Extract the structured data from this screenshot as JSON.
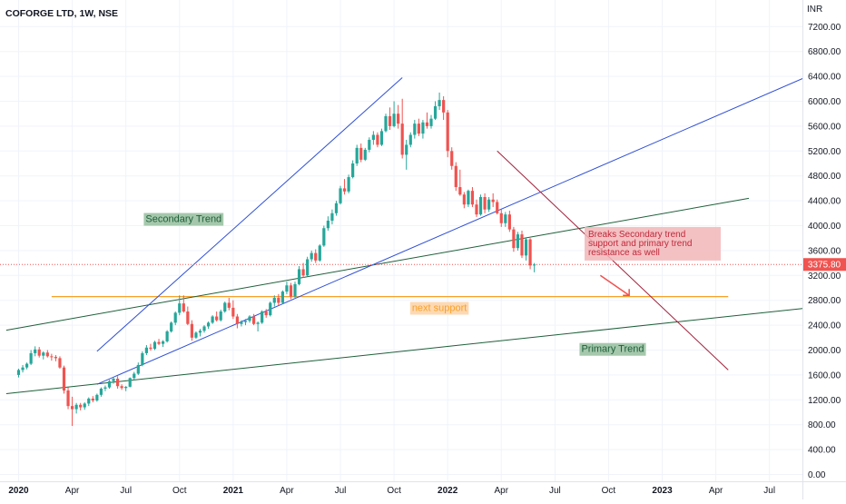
{
  "header": {
    "symbol": "COFORGE LTD, 1W, NSE",
    "currency": "INR"
  },
  "colors": {
    "up": "#26a69a",
    "down": "#ef5350",
    "grid": "#f0f3fa",
    "blue_line": "#2f4fd6",
    "green_line": "#1e5f3a",
    "orange_line": "#f7a128",
    "red_line": "#a3203a",
    "price_tag": "#f05350"
  },
  "chart_data": {
    "type": "candlestick",
    "title": "COFORGE LTD, 1W, NSE",
    "y_unit": "INR",
    "ylim": [
      -60,
      7550
    ],
    "y_ticks": [
      "0.00",
      "400.00",
      "800.00",
      "1200.00",
      "1600.00",
      "2000.00",
      "2400.00",
      "2800.00",
      "3200.00",
      "3600.00",
      "4000.00",
      "4400.00",
      "4800.00",
      "5200.00",
      "5600.00",
      "6000.00",
      "6400.00",
      "6800.00",
      "7200.00"
    ],
    "x_ticks": [
      {
        "label": "2020",
        "t": 0,
        "bold": true
      },
      {
        "label": "Apr",
        "t": 13,
        "bold": false
      },
      {
        "label": "Jul",
        "t": 26,
        "bold": false
      },
      {
        "label": "Oct",
        "t": 39,
        "bold": false
      },
      {
        "label": "2021",
        "t": 52,
        "bold": true
      },
      {
        "label": "Apr",
        "t": 65,
        "bold": false
      },
      {
        "label": "Jul",
        "t": 78,
        "bold": false
      },
      {
        "label": "Oct",
        "t": 91,
        "bold": false
      },
      {
        "label": "2022",
        "t": 104,
        "bold": true
      },
      {
        "label": "Apr",
        "t": 117,
        "bold": false
      },
      {
        "label": "Jul",
        "t": 130,
        "bold": false
      },
      {
        "label": "Oct",
        "t": 143,
        "bold": false
      },
      {
        "label": "2023",
        "t": 156,
        "bold": true
      },
      {
        "label": "Apr",
        "t": 169,
        "bold": false
      },
      {
        "label": "Jul",
        "t": 182,
        "bold": false
      }
    ],
    "candles": [
      [
        1600,
        1700,
        1560,
        1680
      ],
      [
        1680,
        1760,
        1640,
        1720
      ],
      [
        1720,
        1800,
        1690,
        1780
      ],
      [
        1780,
        2000,
        1760,
        1950
      ],
      [
        1950,
        2060,
        1900,
        2010
      ],
      [
        2010,
        2050,
        1880,
        1910
      ],
      [
        1910,
        1980,
        1850,
        1960
      ],
      [
        1960,
        2000,
        1880,
        1900
      ],
      [
        1900,
        1940,
        1830,
        1890
      ],
      [
        1890,
        1920,
        1820,
        1870
      ],
      [
        1870,
        1900,
        1700,
        1720
      ],
      [
        1720,
        1750,
        1300,
        1350
      ],
      [
        1350,
        1400,
        1050,
        1100
      ],
      [
        1100,
        1250,
        780,
        1050
      ],
      [
        1050,
        1150,
        980,
        1120
      ],
      [
        1120,
        1150,
        1030,
        1080
      ],
      [
        1080,
        1160,
        1040,
        1140
      ],
      [
        1140,
        1240,
        1100,
        1220
      ],
      [
        1220,
        1260,
        1160,
        1190
      ],
      [
        1190,
        1300,
        1170,
        1280
      ],
      [
        1280,
        1400,
        1250,
        1380
      ],
      [
        1380,
        1430,
        1340,
        1400
      ],
      [
        1400,
        1520,
        1380,
        1500
      ],
      [
        1500,
        1560,
        1460,
        1540
      ],
      [
        1540,
        1580,
        1380,
        1420
      ],
      [
        1420,
        1450,
        1360,
        1390
      ],
      [
        1390,
        1420,
        1340,
        1410
      ],
      [
        1410,
        1560,
        1400,
        1550
      ],
      [
        1550,
        1650,
        1520,
        1620
      ],
      [
        1620,
        1800,
        1600,
        1760
      ],
      [
        1760,
        1980,
        1740,
        1950
      ],
      [
        1950,
        2080,
        1920,
        2040
      ],
      [
        2040,
        2100,
        1990,
        2020
      ],
      [
        2020,
        2150,
        2000,
        2130
      ],
      [
        2130,
        2180,
        2080,
        2100
      ],
      [
        2100,
        2160,
        2050,
        2140
      ],
      [
        2140,
        2320,
        2120,
        2300
      ],
      [
        2300,
        2460,
        2280,
        2440
      ],
      [
        2440,
        2620,
        2400,
        2600
      ],
      [
        2600,
        2880,
        2560,
        2750
      ],
      [
        2750,
        2880,
        2600,
        2620
      ],
      [
        2620,
        2700,
        2400,
        2420
      ],
      [
        2420,
        2480,
        2150,
        2200
      ],
      [
        2200,
        2300,
        2180,
        2280
      ],
      [
        2280,
        2340,
        2220,
        2310
      ],
      [
        2310,
        2400,
        2280,
        2380
      ],
      [
        2380,
        2460,
        2340,
        2440
      ],
      [
        2440,
        2560,
        2420,
        2540
      ],
      [
        2540,
        2620,
        2460,
        2480
      ],
      [
        2480,
        2650,
        2460,
        2620
      ],
      [
        2620,
        2780,
        2600,
        2760
      ],
      [
        2760,
        2840,
        2640,
        2680
      ],
      [
        2680,
        2800,
        2500,
        2540
      ],
      [
        2540,
        2580,
        2350,
        2420
      ],
      [
        2420,
        2480,
        2380,
        2450
      ],
      [
        2450,
        2500,
        2400,
        2470
      ],
      [
        2470,
        2560,
        2440,
        2540
      ],
      [
        2540,
        2580,
        2400,
        2420
      ],
      [
        2420,
        2460,
        2300,
        2440
      ],
      [
        2440,
        2640,
        2420,
        2620
      ],
      [
        2620,
        2660,
        2520,
        2560
      ],
      [
        2560,
        2780,
        2540,
        2760
      ],
      [
        2760,
        2880,
        2700,
        2840
      ],
      [
        2840,
        2900,
        2720,
        2760
      ],
      [
        2760,
        2960,
        2740,
        2940
      ],
      [
        2940,
        3100,
        2900,
        3040
      ],
      [
        3040,
        3080,
        2820,
        2860
      ],
      [
        2860,
        3100,
        2840,
        3060
      ],
      [
        3060,
        3350,
        3040,
        3300
      ],
      [
        3300,
        3400,
        3160,
        3200
      ],
      [
        3200,
        3500,
        3180,
        3460
      ],
      [
        3460,
        3600,
        3420,
        3560
      ],
      [
        3560,
        3620,
        3400,
        3440
      ],
      [
        3440,
        3700,
        3420,
        3680
      ],
      [
        3680,
        4000,
        3660,
        3960
      ],
      [
        3960,
        4150,
        3920,
        4080
      ],
      [
        4080,
        4260,
        4020,
        4200
      ],
      [
        4200,
        4400,
        4160,
        4360
      ],
      [
        4360,
        4640,
        4340,
        4600
      ],
      [
        4600,
        4750,
        4500,
        4550
      ],
      [
        4550,
        4820,
        4520,
        4780
      ],
      [
        4780,
        5050,
        4760,
        5000
      ],
      [
        5000,
        5300,
        4960,
        5250
      ],
      [
        5250,
        5320,
        5020,
        5060
      ],
      [
        5060,
        5250,
        5040,
        5220
      ],
      [
        5220,
        5420,
        5180,
        5380
      ],
      [
        5380,
        5520,
        5300,
        5460
      ],
      [
        5460,
        5500,
        5260,
        5300
      ],
      [
        5300,
        5560,
        5280,
        5520
      ],
      [
        5520,
        5800,
        5500,
        5760
      ],
      [
        5760,
        5900,
        5540,
        5600
      ],
      [
        5600,
        6000,
        5580,
        5800
      ],
      [
        5800,
        5940,
        5560,
        5640
      ],
      [
        5640,
        6040,
        5080,
        5140
      ],
      [
        5140,
        5380,
        4900,
        5300
      ],
      [
        5300,
        5500,
        5260,
        5460
      ],
      [
        5460,
        5700,
        5400,
        5640
      ],
      [
        5640,
        5720,
        5440,
        5480
      ],
      [
        5480,
        5700,
        5400,
        5660
      ],
      [
        5660,
        5820,
        5560,
        5600
      ],
      [
        5600,
        5780,
        5560,
        5720
      ],
      [
        5720,
        6000,
        5700,
        5920
      ],
      [
        5920,
        6140,
        5860,
        6020
      ],
      [
        6020,
        6080,
        5700,
        5820
      ],
      [
        5820,
        5860,
        5100,
        5200
      ],
      [
        5200,
        5260,
        4900,
        4960
      ],
      [
        4960,
        5020,
        4560,
        4620
      ],
      [
        4620,
        4900,
        4480,
        4500
      ],
      [
        4500,
        4540,
        4280,
        4340
      ],
      [
        4340,
        4580,
        4300,
        4560
      ],
      [
        4560,
        4620,
        4300,
        4340
      ],
      [
        4340,
        4420,
        4140,
        4180
      ],
      [
        4180,
        4500,
        4160,
        4460
      ],
      [
        4460,
        4520,
        4200,
        4260
      ],
      [
        4260,
        4460,
        4220,
        4420
      ],
      [
        4420,
        4520,
        4300,
        4380
      ],
      [
        4380,
        4420,
        4180,
        4200
      ],
      [
        4200,
        4260,
        3980,
        4040
      ],
      [
        4040,
        4220,
        3980,
        4180
      ],
      [
        4180,
        4240,
        3900,
        3940
      ],
      [
        3940,
        3980,
        3580,
        3640
      ],
      [
        3640,
        3900,
        3600,
        3860
      ],
      [
        3860,
        3920,
        3480,
        3520
      ],
      [
        3520,
        3800,
        3440,
        3780
      ],
      [
        3780,
        3800,
        3300,
        3360
      ],
      [
        3360,
        3400,
        3250,
        3376
      ]
    ],
    "overlays": {
      "secondary_upper": [
        [
          19,
          1980
        ],
        [
          93,
          6380
        ]
      ],
      "secondary_lower": [
        [
          19,
          1450
        ],
        [
          193,
          6450
        ]
      ],
      "green_upper": [
        [
          -3,
          2320
        ],
        [
          177,
          4440
        ]
      ],
      "primary_trend": [
        [
          -3,
          1300
        ],
        [
          193,
          2690
        ]
      ],
      "next_support": [
        [
          8,
          2860
        ],
        [
          172,
          2860
        ]
      ],
      "red_resistance": [
        [
          116,
          5200
        ],
        [
          172,
          1680
        ]
      ],
      "projection_arrow": [
        [
          141,
          3200
        ],
        [
          148,
          2880
        ]
      ]
    },
    "last_price": 3376,
    "last_price_label": "3375.80",
    "annotations": {
      "secondary": {
        "text": "Secondary Trend",
        "t": 40,
        "y": 4100
      },
      "support": {
        "text": "next support",
        "t": 102,
        "y": 2670
      },
      "primary": {
        "text": "Primary Trend",
        "t": 144,
        "y": 2010
      },
      "breaks": {
        "lines": [
          "Breaks Secondary trend",
          "support and primary trend",
          "resistance as well"
        ],
        "t": 144,
        "y": 3950
      }
    }
  }
}
